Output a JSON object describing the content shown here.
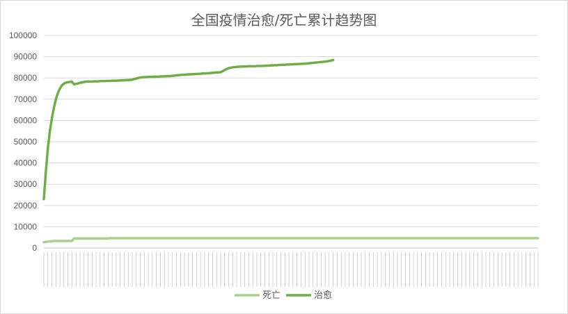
{
  "chart_data": {
    "type": "line",
    "title": "全国疫情治愈/死亡累计趋势图",
    "xlabel": "",
    "ylabel": "",
    "ylim": [
      0,
      100000
    ],
    "yticks": [
      0,
      10000,
      20000,
      30000,
      40000,
      50000,
      60000,
      70000,
      80000,
      90000,
      100000
    ],
    "grid": true,
    "legend_position": "bottom",
    "x_tick_labels_note": "",
    "series": [
      {
        "name": "死亡",
        "color": "#a9d18e",
        "values": [
          2700,
          2900,
          3000,
          3100,
          3200,
          3300,
          3300,
          3300,
          3300,
          3300,
          3300,
          3300,
          3300,
          3300,
          3300,
          4500,
          4500,
          4500,
          4500,
          4500,
          4500,
          4500,
          4500,
          4500,
          4500,
          4500,
          4500,
          4500,
          4500,
          4500,
          4500,
          4500,
          4500,
          4600,
          4600,
          4600,
          4600,
          4600,
          4600,
          4600,
          4600,
          4600,
          4600,
          4600,
          4600,
          4600,
          4600,
          4600,
          4600,
          4600,
          4600,
          4600,
          4600,
          4600,
          4600,
          4600,
          4600,
          4600,
          4600,
          4600,
          4600,
          4600,
          4600,
          4600,
          4600,
          4600,
          4600,
          4600,
          4600,
          4600,
          4600,
          4600,
          4600,
          4600,
          4600,
          4600,
          4600,
          4600,
          4600,
          4600,
          4600,
          4600,
          4600,
          4600,
          4600,
          4600,
          4600,
          4600,
          4600,
          4600,
          4600,
          4600,
          4600,
          4600,
          4600,
          4600,
          4600,
          4600,
          4600,
          4600,
          4600,
          4600,
          4600,
          4600,
          4600,
          4600,
          4600,
          4600,
          4600,
          4600,
          4600,
          4600,
          4600,
          4600,
          4600,
          4600,
          4600,
          4600,
          4600,
          4600,
          4600,
          4600,
          4600,
          4600,
          4600,
          4600,
          4600,
          4600,
          4600,
          4600,
          4600,
          4600,
          4600,
          4600,
          4600,
          4600,
          4600,
          4600,
          4600,
          4600,
          4600,
          4600,
          4600,
          4600,
          4600,
          4600,
          4600,
          4600,
          4600,
          4600,
          4600,
          4600,
          4600,
          4600,
          4600,
          4600,
          4600,
          4600,
          4600,
          4600,
          4600,
          4600,
          4600,
          4600,
          4600,
          4600,
          4600,
          4600,
          4600,
          4600,
          4600,
          4600,
          4600,
          4600,
          4600,
          4600,
          4600,
          4600,
          4600,
          4600,
          4600,
          4600,
          4600,
          4600,
          4600,
          4600,
          4600,
          4600,
          4600,
          4600,
          4600,
          4600,
          4600,
          4600,
          4600,
          4600,
          4600,
          4600,
          4600,
          4600,
          4600,
          4600,
          4600,
          4600,
          4600,
          4600,
          4600,
          4600,
          4600,
          4600,
          4600,
          4600,
          4600,
          4600,
          4600,
          4600,
          4600,
          4600,
          4600,
          4600,
          4600,
          4600,
          4600,
          4600,
          4600,
          4600,
          4600,
          4600,
          4600,
          4600,
          4600,
          4600,
          4600,
          4600,
          4600,
          4600,
          4600,
          4600,
          4600,
          4600,
          4600,
          4600,
          4600,
          4600,
          4600,
          4600,
          4600
        ]
      },
      {
        "name": "治愈",
        "color": "#70ad47",
        "values": [
          23000,
          36000,
          47000,
          55000,
          61000,
          66000,
          70000,
          73000,
          75000,
          76500,
          77300,
          77800,
          78000,
          78100,
          78200,
          77000,
          77200,
          77400,
          77700,
          77900,
          78100,
          78300,
          78300,
          78300,
          78300,
          78400,
          78400,
          78400,
          78500,
          78500,
          78500,
          78600,
          78600,
          78600,
          78700,
          78700,
          78700,
          78800,
          78800,
          78900,
          78900,
          79000,
          79000,
          79100,
          79200,
          79500,
          79700,
          80000,
          80200,
          80300,
          80400,
          80400,
          80500,
          80500,
          80500,
          80600,
          80600,
          80600,
          80700,
          80700,
          80800,
          80800,
          80900,
          80900,
          81000,
          81100,
          81200,
          81300,
          81400,
          81500,
          81500,
          81600,
          81700,
          81700,
          81800,
          81800,
          81900,
          81900,
          82000,
          82100,
          82100,
          82200,
          82200,
          82300,
          82400,
          82500,
          82600,
          82600,
          82700,
          83200,
          83700,
          84200,
          84600,
          84800,
          85000,
          85100,
          85200,
          85300,
          85300,
          85400,
          85400,
          85400,
          85500,
          85500,
          85500,
          85500,
          85600,
          85600,
          85600,
          85700,
          85700,
          85800,
          85800,
          85900,
          85900,
          86000,
          86000,
          86100,
          86100,
          86200,
          86200,
          86300,
          86300,
          86400,
          86400,
          86500,
          86500,
          86600,
          86600,
          86700,
          86700,
          86800,
          86900,
          87000,
          87100,
          87200,
          87300,
          87400,
          87500,
          87600,
          87700,
          87800,
          88000,
          88200,
          88400
        ]
      }
    ]
  }
}
